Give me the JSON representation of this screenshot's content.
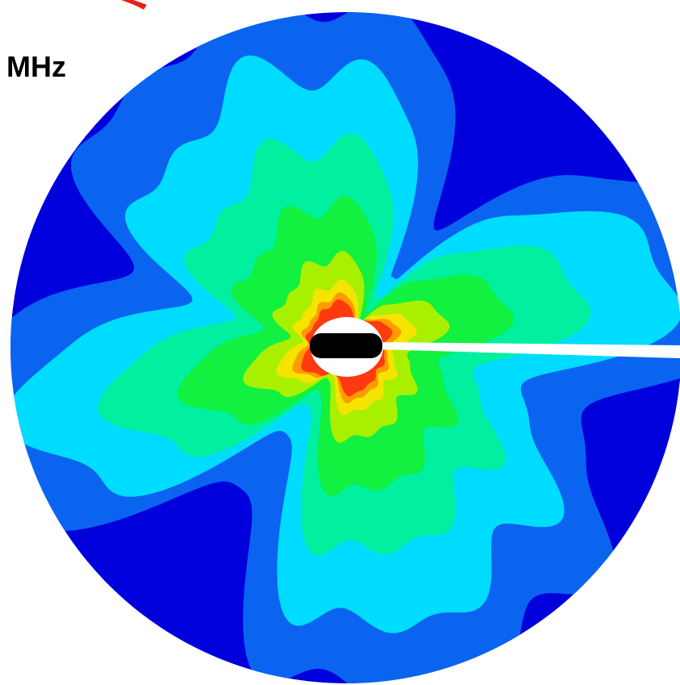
{
  "label": "MHz"
}
